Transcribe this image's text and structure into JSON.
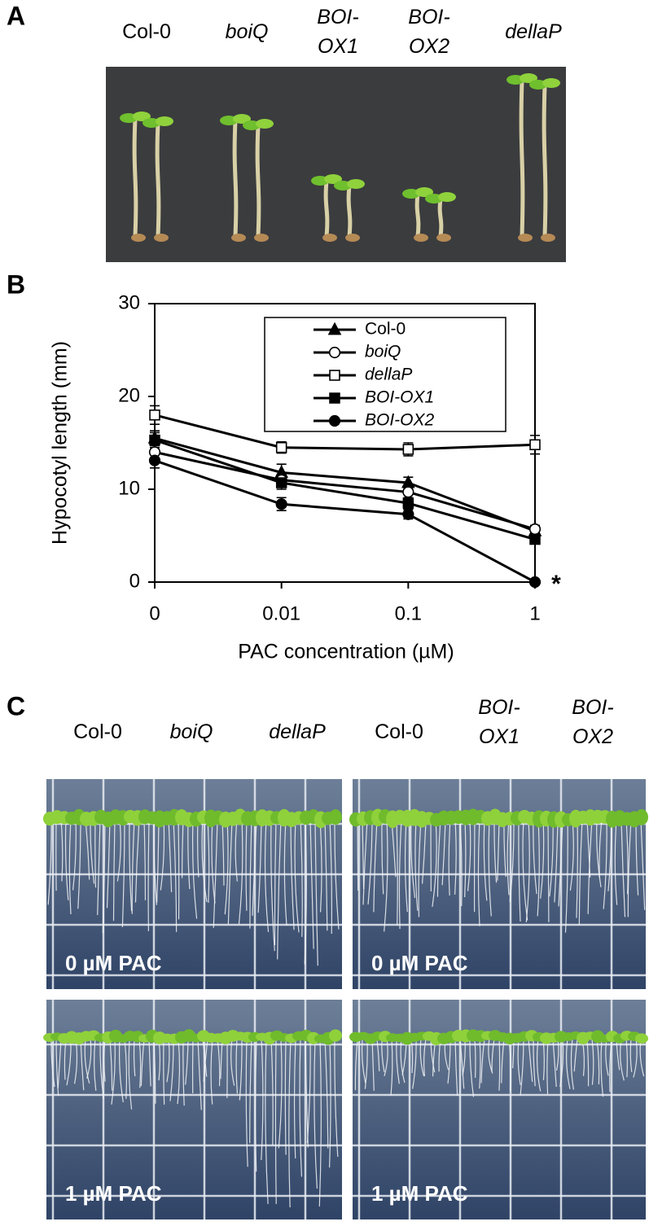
{
  "panel_a": {
    "label": "A",
    "genotypes": [
      [
        "Col-0"
      ],
      [
        "boiQ"
      ],
      [
        "BOI-",
        "OX1"
      ],
      [
        "BOI-",
        "OX2"
      ],
      [
        "dellaP"
      ]
    ]
  },
  "panel_b_label": "B",
  "chart_data": {
    "type": "line",
    "ylabel": "Hypocotyl length (mm)",
    "xlabel": "PAC concentration (µM)",
    "categories": [
      "0",
      "0.01",
      "0.1",
      "1"
    ],
    "ylim": [
      0,
      30
    ],
    "yticks": [
      0,
      10,
      20,
      30
    ],
    "series": [
      {
        "name": "Col-0",
        "color": "#000000",
        "marker": "triangle",
        "filled": true,
        "values": [
          15.5,
          11.8,
          10.7,
          5.5
        ],
        "errors": [
          0.8,
          0.9,
          0.6,
          0.5
        ]
      },
      {
        "name": "boiQ",
        "color": "#000000",
        "marker": "circle",
        "filled": false,
        "values": [
          14.0,
          11.0,
          9.7,
          5.7
        ],
        "errors": [
          0.8,
          0.6,
          0.7,
          0.4
        ]
      },
      {
        "name": "dellaP",
        "color": "#000000",
        "marker": "square",
        "filled": false,
        "values": [
          18.0,
          14.5,
          14.3,
          14.8
        ],
        "errors": [
          1.0,
          0.6,
          0.7,
          1.0
        ]
      },
      {
        "name": "BOI-OX1",
        "color": "#000000",
        "marker": "square",
        "filled": true,
        "values": [
          15.3,
          10.7,
          8.5,
          4.6
        ],
        "errors": [
          0.8,
          0.7,
          0.6,
          0.5
        ]
      },
      {
        "name": "BOI-OX2",
        "color": "#000000",
        "marker": "circle",
        "filled": true,
        "values": [
          13.1,
          8.4,
          7.3,
          0.0
        ],
        "errors": [
          0.8,
          0.7,
          0.5,
          0.0
        ]
      }
    ],
    "annotation": "*"
  },
  "panel_c": {
    "label": "C",
    "left_genotypes": [
      [
        "Col-0"
      ],
      [
        "boiQ"
      ],
      [
        "dellaP"
      ]
    ],
    "right_genotypes": [
      [
        "Col-0"
      ],
      [
        "BOI-",
        "OX1"
      ],
      [
        "BOI-",
        "OX2"
      ]
    ],
    "plates": [
      {
        "label": "0 µM PAC"
      },
      {
        "label": "0 µM PAC"
      },
      {
        "label": "1 µM PAC"
      },
      {
        "label": "1 µM PAC"
      }
    ]
  }
}
